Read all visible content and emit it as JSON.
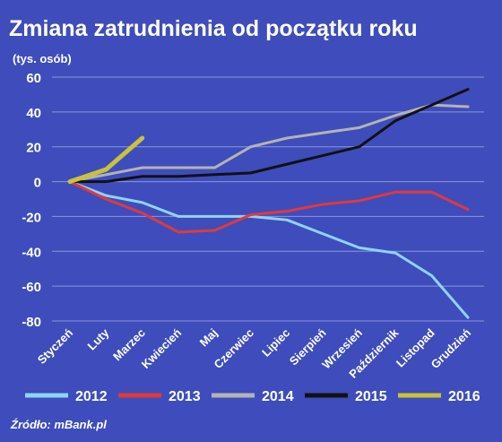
{
  "chart_data": {
    "type": "line",
    "title": "Zmiana zatrudnienia od początku roku",
    "subtitle": "(tys. osób)",
    "source": "Źródło: mBank.pl",
    "categories": [
      "Styczeń",
      "Luty",
      "Marzec",
      "Kwiecień",
      "Maj",
      "Czerwiec",
      "Lipiec",
      "Sierpień",
      "Wrzesień",
      "Październik",
      "Listopad",
      "Grudzień"
    ],
    "series": [
      {
        "name": "2012",
        "color": "#8fd3f4",
        "values": [
          0,
          -8,
          -12,
          -20,
          -20,
          -20,
          -22,
          -30,
          -38,
          -41,
          -54,
          -78
        ]
      },
      {
        "name": "2013",
        "color": "#e0393e",
        "values": [
          0,
          -10,
          -18,
          -29,
          -28,
          -19,
          -17,
          -13,
          -11,
          -6,
          -6,
          -16
        ]
      },
      {
        "name": "2014",
        "color": "#b3b3b3",
        "values": [
          0,
          4,
          8,
          8,
          8,
          20,
          25,
          28,
          31,
          38,
          44,
          43
        ]
      },
      {
        "name": "2015",
        "color": "#111111",
        "values": [
          0,
          0,
          3,
          3,
          4,
          5,
          10,
          15,
          20,
          35,
          44,
          53
        ]
      },
      {
        "name": "2016",
        "color": "#c9c33a",
        "values": [
          0,
          7,
          25,
          null,
          null,
          null,
          null,
          null,
          null,
          null,
          null,
          null
        ]
      }
    ],
    "ylim": [
      -80,
      60
    ],
    "yticks": [
      -80,
      -60,
      -40,
      -20,
      0,
      20,
      40,
      60
    ],
    "grid": true
  }
}
